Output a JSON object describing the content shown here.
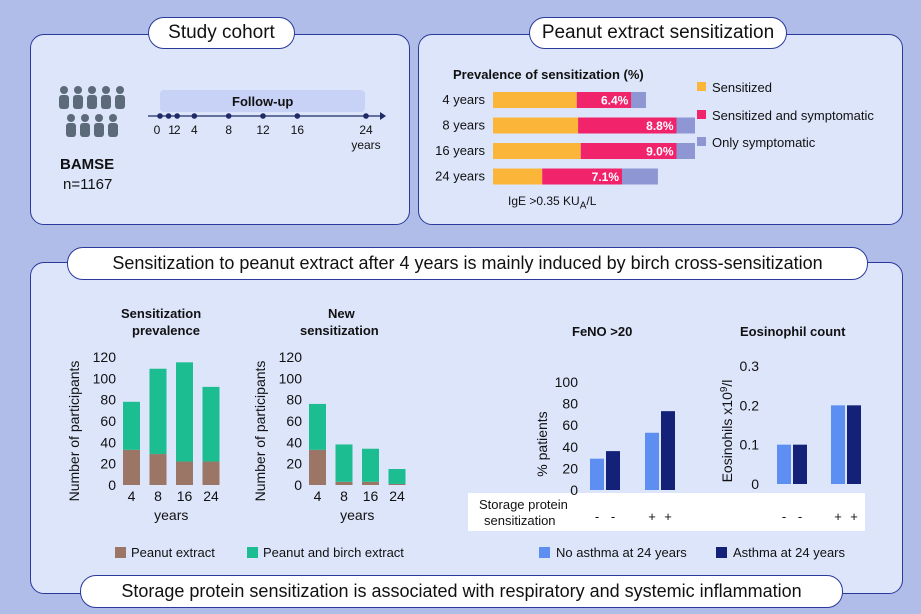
{
  "colors": {
    "bg": "#b1bde9",
    "panel": "#dde5fb",
    "border": "#2a3a9a",
    "sensitized": "#fbb63a",
    "sens_symp": "#f0236b",
    "only_symp": "#8e96d3",
    "peanut": "#9b7565",
    "peanut_birch": "#1bbd91",
    "no_asthma": "#5c8ff1",
    "asthma": "#142178"
  },
  "cohort": {
    "title": "Study cohort",
    "name": "BAMSE",
    "n": "n=1167",
    "followup_label": "Follow-up",
    "timepoints": [
      "0",
      "1",
      "2",
      "4",
      "8",
      "12",
      "16",
      "24"
    ],
    "unit": "years",
    "icon": "people-group-icon"
  },
  "peanut": {
    "title": "Peanut extract sensitization",
    "chart_title": "Prevalence of sensitization (%)",
    "footnote_main": "IgE >0.35 KU",
    "footnote_sub": "A",
    "footnote_tail": "/L",
    "legend": [
      "Sensitized",
      "Sensitized and symptomatic",
      "Only symptomatic"
    ]
  },
  "middle_title": "Sensitization to peanut extract after 4 years is mainly induced by birch cross-sensitization",
  "bottom_title": "Storage protein sensitization is associated with respiratory and systemic inflammation",
  "legend_peanut": [
    "Peanut extract",
    "Peanut and birch extract"
  ],
  "legend_asthma": [
    "No asthma at 24 years",
    "Asthma at 24 years"
  ],
  "storage_label": [
    "Storage protein",
    "sensitization"
  ],
  "chart_data": [
    {
      "type": "bar",
      "stacked": true,
      "orientation": "horizontal",
      "title": "Prevalence of sensitization (%)",
      "categories": [
        "4 years",
        "8 years",
        "16 years",
        "24 years"
      ],
      "series": [
        {
          "name": "Sensitized",
          "values": [
            6.3,
            6.4,
            6.6,
            3.7
          ]
        },
        {
          "name": "Sensitized and symptomatic",
          "values": [
            4.1,
            7.4,
            7.2,
            6.0
          ]
        },
        {
          "name": "Only symptomatic",
          "values": [
            1.1,
            1.7,
            2.3,
            2.7
          ]
        }
      ],
      "labels": [
        "6.4%",
        "8.8%",
        "9.0%",
        "7.1%"
      ]
    },
    {
      "type": "bar",
      "stacked": true,
      "title": [
        "Sensitization",
        "prevalence"
      ],
      "categories": [
        "4",
        "8",
        "16",
        "24"
      ],
      "xlabel": "years",
      "ylabel": "Number of participants",
      "ylim": [
        0,
        120
      ],
      "yticks": [
        "0",
        "20",
        "40",
        "60",
        "80",
        "100",
        "120"
      ],
      "series": [
        {
          "name": "Peanut extract",
          "values": [
            33,
            29,
            22,
            22
          ]
        },
        {
          "name": "Peanut and birch extract",
          "values": [
            45,
            80,
            93,
            70
          ]
        }
      ]
    },
    {
      "type": "bar",
      "stacked": true,
      "title": [
        "New",
        "sensitization"
      ],
      "categories": [
        "4",
        "8",
        "16",
        "24"
      ],
      "xlabel": "years",
      "ylabel": "Number of participants",
      "ylim": [
        0,
        120
      ],
      "yticks": [
        "0",
        "20",
        "40",
        "60",
        "80",
        "100",
        "120"
      ],
      "series": [
        {
          "name": "Peanut extract",
          "values": [
            33,
            3,
            3,
            1
          ]
        },
        {
          "name": "Peanut and birch extract",
          "values": [
            43,
            35,
            31,
            14
          ]
        }
      ]
    },
    {
      "type": "bar",
      "grouped": true,
      "title": "FeNO >20",
      "categories": [
        "-",
        "+"
      ],
      "ylabel": "% patients",
      "ylim": [
        0,
        100
      ],
      "yticks": [
        "0",
        "20",
        "40",
        "60",
        "80",
        "100"
      ],
      "series": [
        {
          "name": "No asthma at 24 years",
          "values": [
            29,
            53
          ]
        },
        {
          "name": "Asthma at 24 years",
          "values": [
            36,
            73
          ]
        }
      ]
    },
    {
      "type": "bar",
      "grouped": true,
      "title": "Eosinophil count",
      "categories": [
        "-",
        "+"
      ],
      "ylabel_main": "Eosinohils x10",
      "ylabel_sup": "9",
      "ylabel_tail": "/l",
      "ylim": [
        0,
        0.3
      ],
      "yticks": [
        "0",
        "0.1",
        "0.2",
        "0.3"
      ],
      "series": [
        {
          "name": "No asthma at 24 years",
          "values": [
            0.1,
            0.2
          ]
        },
        {
          "name": "Asthma at 24 years",
          "values": [
            0.1,
            0.2
          ]
        }
      ]
    }
  ]
}
